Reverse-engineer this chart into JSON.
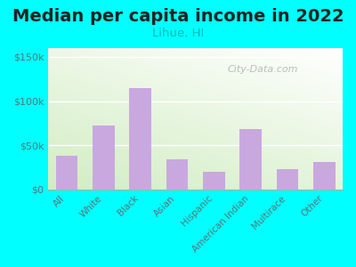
{
  "title": "Median per capita income in 2022",
  "subtitle": "Lihue, HI",
  "categories": [
    "All",
    "White",
    "Black",
    "Asian",
    "Hispanic",
    "American Indian",
    "Multirace",
    "Other"
  ],
  "values": [
    38000,
    72000,
    115000,
    34000,
    20000,
    68000,
    23000,
    31000
  ],
  "bar_color": "#c9a8e0",
  "title_fontsize": 14,
  "title_color": "#222222",
  "subtitle_fontsize": 9.5,
  "subtitle_color": "#00bbbb",
  "tick_color": "#557777",
  "background_outer": "#00ffff",
  "ylim": [
    0,
    160000
  ],
  "yticks": [
    0,
    50000,
    100000,
    150000
  ],
  "ytick_labels": [
    "$0",
    "$50k",
    "$100k",
    "$150k"
  ],
  "watermark": "City-Data.com",
  "watermark_color": "#aaaaaa",
  "grid_color": "#ccddcc"
}
